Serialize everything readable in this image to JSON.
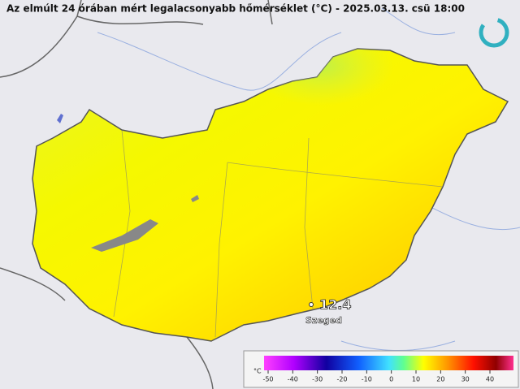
{
  "title": "Az elmúlt 24 órában mért legalacsonyabb hőmérséklet (°C) - 2025.03.13. csü 18:00",
  "station": {
    "name": "Szeged",
    "value": 12.4
  },
  "colorbar": {
    "unit": "°C",
    "ticks": [
      -50,
      -40,
      -30,
      -20,
      -10,
      0,
      10,
      20,
      30,
      40
    ]
  }
}
